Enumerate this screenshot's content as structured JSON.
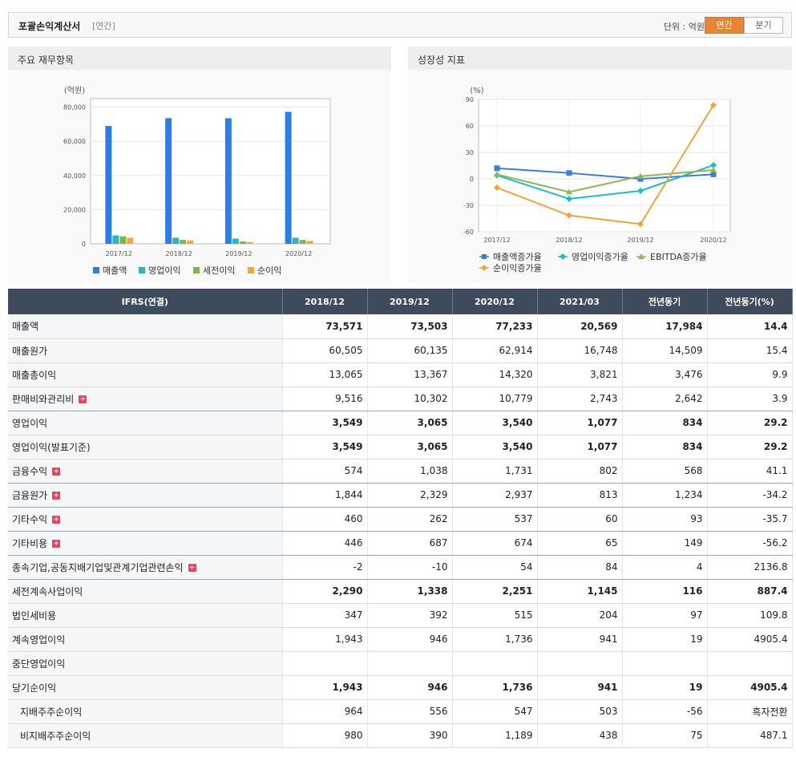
{
  "header": {
    "title": "포괄손익계산서",
    "subtitle": "[연간]",
    "unit": "단위 : 억원",
    "toggle_annual": "연간",
    "toggle_quarter": "분기"
  },
  "panels": {
    "left_title": "주요 재무항목",
    "right_title": "성장성 지표"
  },
  "chart_data": [
    {
      "type": "bar",
      "title": "주요 재무항목",
      "unit_label": "(억원)",
      "categories": [
        "2017/12",
        "2018/12",
        "2019/12",
        "2020/12"
      ],
      "y_ticks": [
        "80,000",
        "60,000",
        "40,000",
        "20,000",
        "0"
      ],
      "ylim": [
        0,
        85000
      ],
      "grid": true,
      "legend_position": "bottom",
      "series": [
        {
          "name": "매출액",
          "color": "#2f7de1",
          "values": [
            69000,
            73571,
            73503,
            77233
          ]
        },
        {
          "name": "영업이익",
          "color": "#29b5c5",
          "values": [
            4900,
            3549,
            3065,
            3540
          ]
        },
        {
          "name": "세전이익",
          "color": "#7cb844",
          "values": [
            4400,
            2290,
            1338,
            2251
          ]
        },
        {
          "name": "순이익",
          "color": "#f3a93a",
          "values": [
            3500,
            1943,
            946,
            1736
          ]
        }
      ]
    },
    {
      "type": "line",
      "title": "성장성 지표",
      "unit_label": "(%)",
      "categories": [
        "2017/12",
        "2018/12",
        "2019/12",
        "2020/12"
      ],
      "y_ticks": [
        "90",
        "60",
        "30",
        "0",
        "-30",
        "-60"
      ],
      "ylim": [
        -60,
        90
      ],
      "grid": true,
      "legend_position": "bottom",
      "series": [
        {
          "name": "매출액증가율",
          "color": "#3b7fd2",
          "marker": "square",
          "values": [
            12,
            6.6,
            -0.1,
            5.1
          ]
        },
        {
          "name": "영업이익증가율",
          "color": "#23b9c9",
          "marker": "diamond",
          "values": [
            4,
            -22.7,
            -13.6,
            15.5
          ]
        },
        {
          "name": "EBITDA증가율",
          "color": "#8cb85a",
          "marker": "triangle",
          "values": [
            5,
            -15,
            3,
            10
          ]
        },
        {
          "name": "순이익증가율",
          "color": "#f2a43a",
          "marker": "diamond",
          "values": [
            -10,
            -41.5,
            -51.3,
            83.5
          ]
        }
      ]
    }
  ],
  "table": {
    "headers": [
      "IFRS(연결)",
      "2018/12",
      "2019/12",
      "2020/12",
      "2021/03",
      "전년동기",
      "전년동기(%)"
    ],
    "rows": [
      {
        "label": "매출액",
        "bold": true,
        "values": [
          "73,571",
          "73,503",
          "77,233",
          "20,569",
          "17,984",
          "14.4"
        ]
      },
      {
        "label": "매출원가",
        "values": [
          "60,505",
          "60,135",
          "62,914",
          "16,748",
          "14,509",
          "15.4"
        ]
      },
      {
        "label": "매출총이익",
        "values": [
          "13,065",
          "13,367",
          "14,320",
          "3,821",
          "3,476",
          "9.9"
        ]
      },
      {
        "label": "판매비와관리비",
        "expand": true,
        "sep": true,
        "values": [
          "9,516",
          "10,302",
          "10,779",
          "2,743",
          "2,642",
          "3.9"
        ]
      },
      {
        "label": "영업이익",
        "bold": true,
        "values": [
          "3,549",
          "3,065",
          "3,540",
          "1,077",
          "834",
          "29.2"
        ]
      },
      {
        "label": "영업이익(발표기준)",
        "bold": true,
        "values": [
          "3,549",
          "3,065",
          "3,540",
          "1,077",
          "834",
          "29.2"
        ]
      },
      {
        "label": "금융수익",
        "expand": true,
        "sep": true,
        "values": [
          "574",
          "1,038",
          "1,731",
          "802",
          "568",
          "41.1"
        ]
      },
      {
        "label": "금융원가",
        "expand": true,
        "sep": true,
        "values": [
          "1,844",
          "2,329",
          "2,937",
          "813",
          "1,234",
          "-34.2"
        ]
      },
      {
        "label": "기타수익",
        "expand": true,
        "sep": true,
        "values": [
          "460",
          "262",
          "537",
          "60",
          "93",
          "-35.7"
        ]
      },
      {
        "label": "기타비용",
        "expand": true,
        "sep": true,
        "values": [
          "446",
          "687",
          "674",
          "65",
          "149",
          "-56.2"
        ]
      },
      {
        "label": "종속기업,공동지배기업및관계기업관련손익",
        "expand": true,
        "sep": true,
        "values": [
          "-2",
          "-10",
          "54",
          "84",
          "4",
          "2136.8"
        ]
      },
      {
        "label": "세전계속사업이익",
        "bold": true,
        "values": [
          "2,290",
          "1,338",
          "2,251",
          "1,145",
          "116",
          "887.4"
        ]
      },
      {
        "label": "법인세비용",
        "values": [
          "347",
          "392",
          "515",
          "204",
          "97",
          "109.8"
        ]
      },
      {
        "label": "계속영업이익",
        "values": [
          "1,943",
          "946",
          "1,736",
          "941",
          "19",
          "4905.4"
        ]
      },
      {
        "label": "중단영업이익",
        "values": [
          "",
          "",
          "",
          "",
          "",
          ""
        ]
      },
      {
        "label": "당기순이익",
        "bold": true,
        "values": [
          "1,943",
          "946",
          "1,736",
          "941",
          "19",
          "4905.4"
        ]
      },
      {
        "label": "지배주주순이익",
        "sub": true,
        "values": [
          "964",
          "556",
          "547",
          "503",
          "-56",
          "흑자전환"
        ]
      },
      {
        "label": "비지배주주순이익",
        "sub": true,
        "values": [
          "980",
          "390",
          "1,189",
          "438",
          "75",
          "487.1"
        ]
      }
    ]
  }
}
